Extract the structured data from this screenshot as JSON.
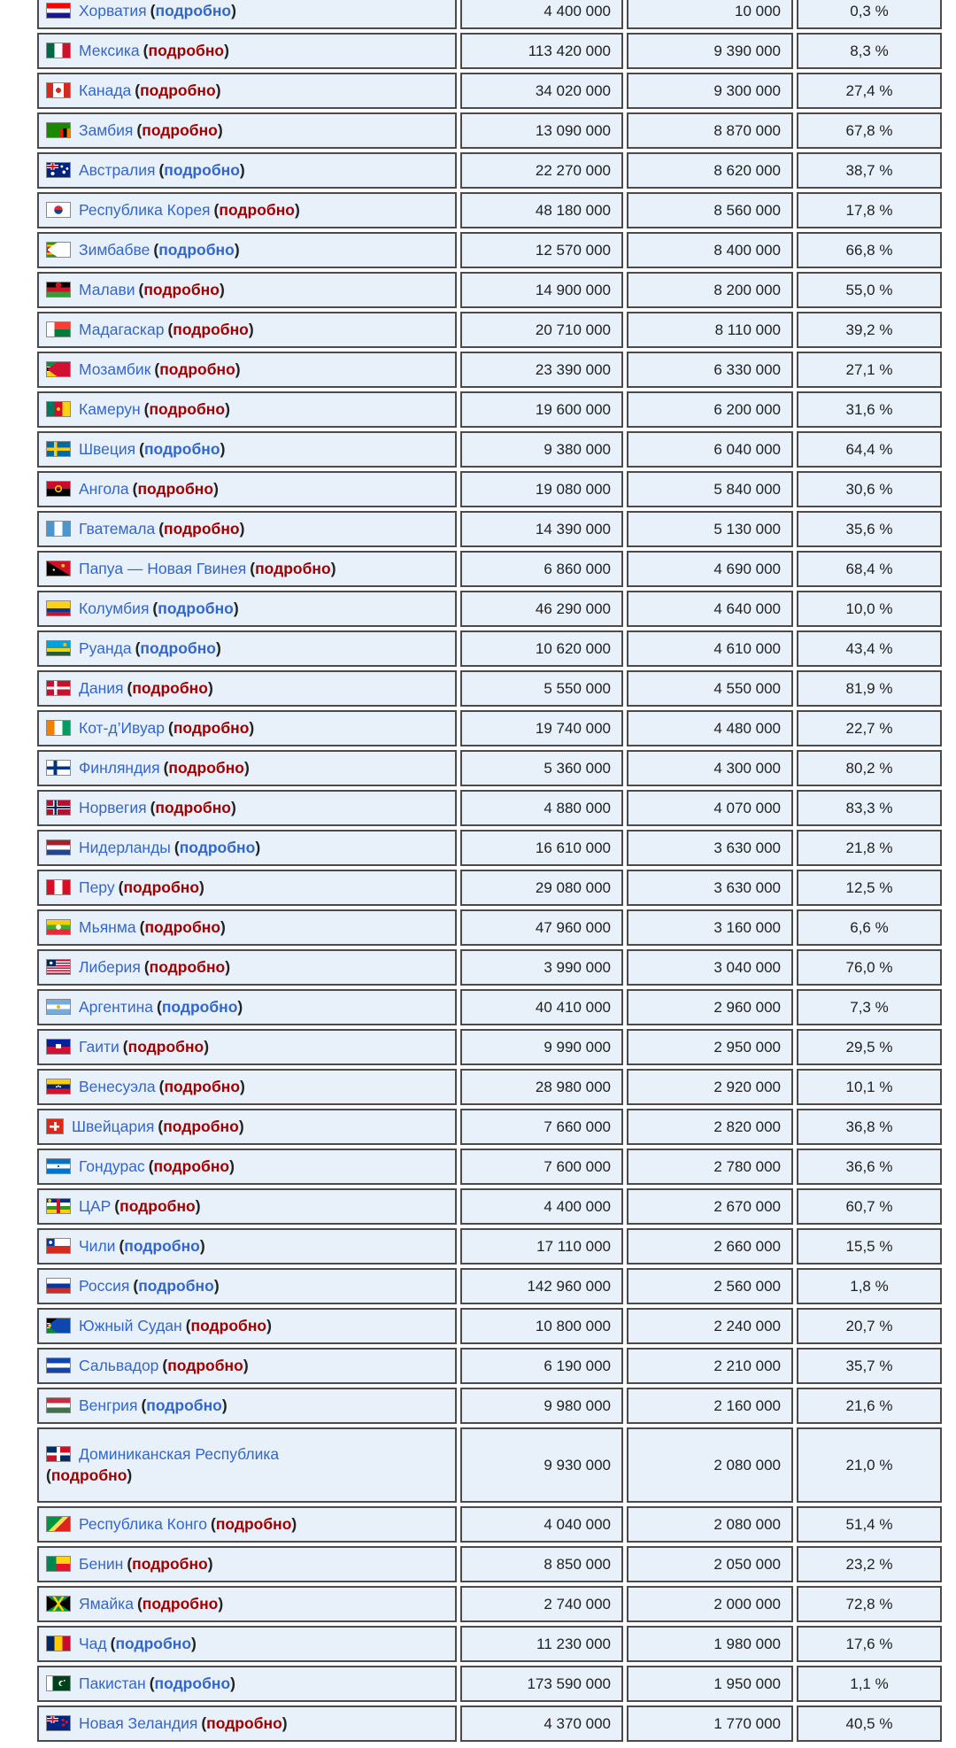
{
  "colors": {
    "page_bg": "#ffffff",
    "text": "#202122",
    "link_blue": "#3366cc",
    "link_red": "#a20000",
    "row_bg": "#e8f1fa",
    "cell_border": "#4b4b4b",
    "flag_border": "#8a8a8a"
  },
  "table": {
    "detail_label": "подробно",
    "rows": [
      {
        "country": "Хорватия",
        "flag": "hr",
        "detail_style": "blue",
        "population": "4 400 000",
        "adherents": "10 000",
        "percent": "0,3 %"
      },
      {
        "country": "Мексика",
        "flag": "mx",
        "detail_style": "red",
        "population": "113 420 000",
        "adherents": "9 390 000",
        "percent": "8,3 %"
      },
      {
        "country": "Канада",
        "flag": "ca",
        "detail_style": "red",
        "population": "34 020 000",
        "adherents": "9 300 000",
        "percent": "27,4 %"
      },
      {
        "country": "Замбия",
        "flag": "zm",
        "detail_style": "red",
        "population": "13 090 000",
        "adherents": "8 870 000",
        "percent": "67,8 %"
      },
      {
        "country": "Австралия",
        "flag": "au",
        "detail_style": "blue",
        "population": "22 270 000",
        "adherents": "8 620 000",
        "percent": "38,7 %"
      },
      {
        "country": "Республика Корея",
        "flag": "kr",
        "detail_style": "red",
        "population": "48 180 000",
        "adherents": "8 560 000",
        "percent": "17,8 %"
      },
      {
        "country": "Зимбабве",
        "flag": "zw",
        "detail_style": "blue",
        "population": "12 570 000",
        "adherents": "8 400 000",
        "percent": "66,8 %"
      },
      {
        "country": "Малави",
        "flag": "mw",
        "detail_style": "red",
        "population": "14 900 000",
        "adherents": "8 200 000",
        "percent": "55,0 %"
      },
      {
        "country": "Мадагаскар",
        "flag": "mg",
        "detail_style": "red",
        "population": "20 710 000",
        "adherents": "8 110 000",
        "percent": "39,2 %"
      },
      {
        "country": "Мозамбик",
        "flag": "mz",
        "detail_style": "red",
        "population": "23 390 000",
        "adherents": "6 330 000",
        "percent": "27,1 %"
      },
      {
        "country": "Камерун",
        "flag": "cm",
        "detail_style": "red",
        "population": "19 600 000",
        "adherents": "6 200 000",
        "percent": "31,6 %"
      },
      {
        "country": "Швеция",
        "flag": "se",
        "detail_style": "blue",
        "population": "9 380 000",
        "adherents": "6 040 000",
        "percent": "64,4 %"
      },
      {
        "country": "Ангола",
        "flag": "ao",
        "detail_style": "red",
        "population": "19 080 000",
        "adherents": "5 840 000",
        "percent": "30,6 %"
      },
      {
        "country": "Гватемала",
        "flag": "gt",
        "detail_style": "red",
        "population": "14 390 000",
        "adherents": "5 130 000",
        "percent": "35,6 %"
      },
      {
        "country": "Папуа — Новая Гвинея",
        "flag": "pg",
        "detail_style": "red",
        "population": "6 860 000",
        "adherents": "4 690 000",
        "percent": "68,4 %"
      },
      {
        "country": "Колумбия",
        "flag": "co",
        "detail_style": "blue",
        "population": "46 290 000",
        "adherents": "4 640 000",
        "percent": "10,0 %"
      },
      {
        "country": "Руанда",
        "flag": "rw",
        "detail_style": "blue",
        "population": "10 620 000",
        "adherents": "4 610 000",
        "percent": "43,4 %"
      },
      {
        "country": "Дания",
        "flag": "dk",
        "detail_style": "red",
        "population": "5 550 000",
        "adherents": "4 550 000",
        "percent": "81,9 %"
      },
      {
        "country": "Кот-д’Ивуар",
        "flag": "ci",
        "detail_style": "red",
        "population": "19 740 000",
        "adherents": "4 480 000",
        "percent": "22,7 %"
      },
      {
        "country": "Финляндия",
        "flag": "fi",
        "detail_style": "red",
        "population": "5 360 000",
        "adherents": "4 300 000",
        "percent": "80,2 %"
      },
      {
        "country": "Норвегия",
        "flag": "no",
        "detail_style": "red",
        "population": "4 880 000",
        "adherents": "4 070 000",
        "percent": "83,3 %"
      },
      {
        "country": "Нидерланды",
        "flag": "nl",
        "detail_style": "blue",
        "population": "16 610 000",
        "adherents": "3 630 000",
        "percent": "21,8 %"
      },
      {
        "country": "Перу",
        "flag": "pe",
        "detail_style": "red",
        "population": "29 080 000",
        "adherents": "3 630 000",
        "percent": "12,5 %"
      },
      {
        "country": "Мьянма",
        "flag": "mm",
        "detail_style": "red",
        "population": "47 960 000",
        "adherents": "3 160 000",
        "percent": "6,6 %"
      },
      {
        "country": "Либерия",
        "flag": "lr",
        "detail_style": "red",
        "population": "3 990 000",
        "adherents": "3 040 000",
        "percent": "76,0 %"
      },
      {
        "country": "Аргентина",
        "flag": "ar",
        "detail_style": "blue",
        "population": "40 410 000",
        "adherents": "2 960 000",
        "percent": "7,3 %"
      },
      {
        "country": "Гаити",
        "flag": "ht",
        "detail_style": "red",
        "population": "9 990 000",
        "adherents": "2 950 000",
        "percent": "29,5 %"
      },
      {
        "country": "Венесуэла",
        "flag": "ve",
        "detail_style": "red",
        "population": "28 980 000",
        "adherents": "2 920 000",
        "percent": "10,1 %"
      },
      {
        "country": "Швейцария",
        "flag": "ch",
        "detail_style": "red",
        "population": "7 660 000",
        "adherents": "2 820 000",
        "percent": "36,8 %"
      },
      {
        "country": "Гондурас",
        "flag": "hn",
        "detail_style": "red",
        "population": "7 600 000",
        "adherents": "2 780 000",
        "percent": "36,6 %"
      },
      {
        "country": "ЦАР",
        "flag": "cf",
        "detail_style": "red",
        "population": "4 400 000",
        "adherents": "2 670 000",
        "percent": "60,7 %"
      },
      {
        "country": "Чили",
        "flag": "cl",
        "detail_style": "blue",
        "population": "17 110 000",
        "adherents": "2 660 000",
        "percent": "15,5 %"
      },
      {
        "country": "Россия",
        "flag": "ru",
        "detail_style": "blue",
        "population": "142 960 000",
        "adherents": "2 560 000",
        "percent": "1,8 %"
      },
      {
        "country": "Южный Судан",
        "flag": "ss",
        "detail_style": "red",
        "population": "10 800 000",
        "adherents": "2 240 000",
        "percent": "20,7 %"
      },
      {
        "country": "Сальвадор",
        "flag": "sv",
        "detail_style": "red",
        "population": "6 190 000",
        "adherents": "2 210 000",
        "percent": "35,7 %"
      },
      {
        "country": "Венгрия",
        "flag": "hu",
        "detail_style": "blue",
        "population": "9 980 000",
        "adherents": "2 160 000",
        "percent": "21,6 %"
      },
      {
        "country": "Доминиканская Республика",
        "flag": "do",
        "detail_style": "red",
        "two_line": true,
        "population": "9 930 000",
        "adherents": "2 080 000",
        "percent": "21,0 %"
      },
      {
        "country": "Республика Конго",
        "flag": "cg",
        "detail_style": "red",
        "population": "4 040 000",
        "adherents": "2 080 000",
        "percent": "51,4 %"
      },
      {
        "country": "Бенин",
        "flag": "bj",
        "detail_style": "red",
        "population": "8 850 000",
        "adherents": "2 050 000",
        "percent": "23,2 %"
      },
      {
        "country": "Ямайка",
        "flag": "jm",
        "detail_style": "red",
        "population": "2 740 000",
        "adherents": "2 000 000",
        "percent": "72,8 %"
      },
      {
        "country": "Чад",
        "flag": "td",
        "detail_style": "blue",
        "population": "11 230 000",
        "adherents": "1 980 000",
        "percent": "17,6 %"
      },
      {
        "country": "Пакистан",
        "flag": "pk",
        "detail_style": "blue",
        "population": "173 590 000",
        "adherents": "1 950 000",
        "percent": "1,1 %"
      },
      {
        "country": "Новая Зеландия",
        "flag": "nz",
        "detail_style": "red",
        "population": "4 370 000",
        "adherents": "1 770 000",
        "percent": "40,5 %"
      }
    ]
  },
  "flags": {
    "hr": {
      "css": "linear-gradient(to bottom, #ff0000 33.3%, #ffffff 33.3% 66.6%, #171796 66.6%)"
    },
    "mx": {
      "css": "linear-gradient(to right, #006847 33.3%, #ffffff 33.3% 66.6%, #ce1126 66.6%)"
    },
    "ca": {
      "css": "radial-gradient(circle 3px at 50% 50%, #d52b1e 95%, rgba(213,43,30,0) 100%), linear-gradient(to right, #d52b1e 27%, #ffffff 27% 73%, #d52b1e 73%)"
    },
    "zm": {
      "css": "linear-gradient(to bottom, #198a00 38%, rgba(0,0,0,0) 38%), linear-gradient(to right, #198a00 58%, #de2010 58% 72%, #000000 72% 86%, #ef7d00 86%)"
    },
    "au": {
      "css": "radial-gradient(circle 2px at 74% 65%, #ffffff 90%, rgba(255,255,255,0) 100%), radial-gradient(circle 1.5px at 88% 40%, #ffffff 90%, rgba(255,255,255,0) 100%), radial-gradient(circle 1.5px at 65% 25%, #ffffff 90%, rgba(255,255,255,0) 100%), radial-gradient(circle 2.2px at 25% 75%, #ffffff 90%, rgba(255,255,255,0) 100%), linear-gradient(to bottom, rgba(0,0,0,0) 38%, #cf142b 38% 62%, rgba(0,0,0,0) 62%) 0 0 / 50% 50% no-repeat, linear-gradient(to right, rgba(0,0,0,0) 41%, #cf142b 41% 59%, rgba(0,0,0,0) 59%) 0 0 / 50% 50% no-repeat, linear-gradient(to bottom, rgba(0,0,0,0) 28%, #ffffff 28% 72%, rgba(0,0,0,0) 72%) 0 0 / 50% 50% no-repeat, linear-gradient(to right, rgba(0,0,0,0) 33%, #ffffff 33% 67%, rgba(0,0,0,0) 67%) 0 0 / 50% 50% no-repeat, linear-gradient(#00247d, #00247d)"
    },
    "kr": {
      "css": "radial-gradient(circle at 50% 50%, rgba(0,0,0,0) 0 4.5px, #ffffff 5px), linear-gradient(to bottom, #cd2e3a 50%, #0047a0 50%)"
    },
    "zw": {
      "css": "conic-gradient(from 55deg at 0% 50%, #ffffff 0 70deg, rgba(0,0,0,0) 70deg), linear-gradient(to bottom, #319209 0 14.3%, #ffd200 14.3% 28.6%, #de2010 28.6% 42.9%, #000000 42.9% 57.2%, #de2010 57.2% 71.5%, #ffd200 71.5% 85.8%, #319209 85.8%)"
    },
    "mw": {
      "css": "radial-gradient(circle 3.5px at 50% 18%, #ce1126 90%, rgba(0,0,0,0) 100%), linear-gradient(to bottom, #000000 33.3%, #ce1126 33.3% 66.6%, #339e35 66.6%)"
    },
    "mg": {
      "css": "linear-gradient(to right, #ffffff 33.3%, rgba(0,0,0,0) 33.3%), linear-gradient(to bottom, #fc3d32 50%, #007e3a 50%)"
    },
    "mz": {
      "css": "conic-gradient(from 55deg at 0% 50%, #d21034 0 70deg, rgba(0,0,0,0) 70deg), linear-gradient(to bottom, #009739 31%, #ffffff 31% 36%, #000000 36% 64%, #ffffff 64% 69%, #ffd100 69%)"
    },
    "cm": {
      "css": "radial-gradient(circle 2px at 50% 50%, #fcd116 90%, rgba(0,0,0,0) 100%), linear-gradient(to right, #007a5e 33.3%, #ce1126 33.3% 66.6%, #fcd116 66.6%)"
    },
    "se": {
      "css": "linear-gradient(to bottom, rgba(0,0,0,0) 40%, #fecc00 40% 62%, rgba(0,0,0,0) 62%), linear-gradient(to right, rgba(0,0,0,0) 30%, #fecc00 30% 44%, rgba(0,0,0,0) 44%), linear-gradient(#006aa7, #006aa7)"
    },
    "ao": {
      "css": "radial-gradient(circle at 50% 50%, rgba(0,0,0,0) 2.2px, #ffcb00 2.7px 3.8px, rgba(0,0,0,0) 4.2px), linear-gradient(to bottom, #cc092f 50%, #000000 50%)"
    },
    "gt": {
      "css": "linear-gradient(to right, #4997d0 33.3%, #ffffff 33.3% 66.6%, #4997d0 66.6%)"
    },
    "pg": {
      "css": "radial-gradient(circle 1.2px at 30% 60%, #ffffff 90%, rgba(255,255,255,0) 100%), radial-gradient(circle 2px at 70% 30%, #fcd116 90%, rgba(0,0,0,0) 100%), linear-gradient(to bottom left, #ce1126 49.7%, #000000 50.3%)"
    },
    "co": {
      "css": "linear-gradient(to bottom, #fcd116 50%, #003893 50% 75%, #ce1126 75%)"
    },
    "rw": {
      "css": "radial-gradient(circle 2.2px at 78% 25%, #e5be01 90%, rgba(0,0,0,0) 100%), linear-gradient(to bottom, #00a1de 50%, #fad201 50% 75%, #20603d 75%)"
    },
    "dk": {
      "css": "linear-gradient(to bottom, rgba(0,0,0,0) 40%, #ffffff 40% 60%, rgba(0,0,0,0) 60%), linear-gradient(to right, rgba(0,0,0,0) 30%, #ffffff 30% 44%, rgba(0,0,0,0) 44%), linear-gradient(#c8102e, #c8102e)"
    },
    "ci": {
      "css": "linear-gradient(to right, #f77f00 33.3%, #ffffff 33.3% 66.6%, #009e60 66.6%)"
    },
    "fi": {
      "css": "linear-gradient(to bottom, rgba(0,0,0,0) 40%, #003580 40% 62%, rgba(0,0,0,0) 62%), linear-gradient(to right, rgba(0,0,0,0) 28%, #003580 28% 44%, rgba(0,0,0,0) 44%), linear-gradient(#ffffff, #ffffff)"
    },
    "no": {
      "css": "linear-gradient(to bottom, rgba(0,0,0,0) 43%, #002868 43% 57%, rgba(0,0,0,0) 57%), linear-gradient(to right, rgba(0,0,0,0) 32%, #002868 32% 42%, rgba(0,0,0,0) 42%), linear-gradient(to bottom, rgba(0,0,0,0) 36%, #ffffff 36% 64%, rgba(0,0,0,0) 64%), linear-gradient(to right, rgba(0,0,0,0) 27%, #ffffff 27% 47%, rgba(0,0,0,0) 47%), linear-gradient(#ba0c2f, #ba0c2f)"
    },
    "nl": {
      "css": "linear-gradient(to bottom, #ae1c28 33.3%, #ffffff 33.3% 66.6%, #21468b 66.6%)"
    },
    "pe": {
      "css": "linear-gradient(to right, #d91023 33.3%, #ffffff 33.3% 66.6%, #d91023 66.6%)"
    },
    "mm": {
      "css": "radial-gradient(circle 3px at 50% 50%, #ffffff 90%, rgba(255,255,255,0) 100%), linear-gradient(to bottom, #fecb00 33.3%, #34b233 33.3% 66.6%, #ea2839 66.6%)"
    },
    "lr": {
      "css": "radial-gradient(circle 1.8px at 18% 22%, #ffffff 90%, rgba(255,255,255,0) 100%), linear-gradient(#002868, #002868) 0 0 / 40% 45% no-repeat, repeating-linear-gradient(to bottom, #bf0a30 0 9.1%, #ffffff 9.1% 18.2%)"
    },
    "ar": {
      "css": "radial-gradient(circle 2.2px at 50% 50%, #f6b40e 90%, rgba(0,0,0,0) 100%), linear-gradient(to bottom, #74acdf 33.3%, #ffffff 33.3% 66.6%, #74acdf 66.6%)"
    },
    "ht": {
      "css": "linear-gradient(#ffffff, #ffffff) 50% 50% / 24% 32% no-repeat, linear-gradient(to bottom, #00209f 50%, #d21034 50%)"
    },
    "ve": {
      "css": "radial-gradient(circle 1px at 42% 52%, #ffffff 90%, rgba(255,255,255,0) 100%), radial-gradient(circle 1px at 50% 47%, #ffffff 90%, rgba(255,255,255,0) 100%), radial-gradient(circle 1px at 58% 52%, #ffffff 90%, rgba(255,255,255,0) 100%), linear-gradient(to bottom, #ffcc00 33.3%, #00247d 33.3% 66.6%, #cf142b 66.6%)"
    },
    "ch": {
      "css": "linear-gradient(#ffffff, #ffffff) 50% 50% / 16% 62% no-repeat, linear-gradient(#ffffff, #ffffff) 50% 50% / 62% 16% no-repeat, linear-gradient(#da291c, #da291c)",
      "w": 20
    },
    "hn": {
      "css": "radial-gradient(circle 1.2px at 50% 50%, #0073cf 90%, rgba(0,0,0,0) 100%), linear-gradient(to bottom, #0073cf 33.3%, #ffffff 33.3% 66.6%, #0073cf 66.6%)"
    },
    "cf": {
      "css": "radial-gradient(circle 2px at 12% 12%, #ffce00 90%, rgba(0,0,0,0) 100%), linear-gradient(to right, rgba(0,0,0,0) 42%, #d21034 42% 58%, rgba(0,0,0,0) 58%), linear-gradient(to bottom, #003082 25%, #ffffff 25% 50%, #289728 50% 75%, #ffce00 75%)"
    },
    "cl": {
      "css": "radial-gradient(circle 2px at 16% 25%, #ffffff 90%, rgba(255,255,255,0) 100%), linear-gradient(#0039a6, #0039a6) 0 0 / 33.3% 50% no-repeat, linear-gradient(to bottom, #ffffff 50%, #d52b1e 50%)"
    },
    "ru": {
      "css": "linear-gradient(to bottom, #ffffff 33.3%, #0039a6 33.3% 66.6%, #d52b1e 66.6%)"
    },
    "ss": {
      "css": "radial-gradient(circle 1.8px at 12% 50%, #fcdd09 90%, rgba(0,0,0,0) 100%), conic-gradient(from 55deg at 0% 50%, #0f47af 0 70deg, rgba(0,0,0,0) 70deg), linear-gradient(to bottom, #000000 30%, #ffffff 30% 37%, #da121a 37% 63%, #ffffff 63% 70%, #078930 70%)"
    },
    "sv": {
      "css": "linear-gradient(to bottom, #0f47af 33.3%, #ffffff 33.3% 66.6%, #0f47af 66.6%)"
    },
    "hu": {
      "css": "linear-gradient(to bottom, #cd2a3e 33.3%, #ffffff 33.3% 66.6%, #436f4d 66.6%)"
    },
    "do": {
      "css": "linear-gradient(to bottom, rgba(0,0,0,0) 41%, #ffffff 41% 59%, rgba(0,0,0,0) 59%), linear-gradient(to right, rgba(0,0,0,0) 42%, #ffffff 42% 58%, rgba(0,0,0,0) 58%), conic-gradient(from 0deg at 50% 50%, #ce1126 0 90deg, #002d62 90deg 180deg, #ce1126 180deg 270deg, #002d62 270deg)"
    },
    "cg": {
      "css": "linear-gradient(135deg, #009543 42%, #fbde4a 42% 58%, #dc241f 58%)"
    },
    "bj": {
      "css": "linear-gradient(to right, #008751 40%, rgba(0,0,0,0) 40%), linear-gradient(to bottom, #fcd116 50%, #e8112d 50%)"
    },
    "jm": {
      "css": "linear-gradient(57deg, rgba(0,0,0,0) 46%, #fed100 46% 54%, rgba(0,0,0,0) 54%), linear-gradient(-57deg, rgba(0,0,0,0) 46%, #fed100 46% 54%, rgba(0,0,0,0) 54%), conic-gradient(from 57deg at 50% 50%, #000000 0 66deg, #009b3a 66deg 180deg, #000000 180deg 246deg, #009b3a 246deg)"
    },
    "td": {
      "css": "linear-gradient(to right, #002664 33.3%, #fecb00 33.3% 66.6%, #c60c30 66.6%)"
    },
    "pk": {
      "css": "radial-gradient(circle 1px at 76% 30%, #ffffff 90%, rgba(255,255,255,0) 100%), radial-gradient(circle 2.6px at 68% 52%, #01411c 88%, rgba(0,0,0,0) 100%), radial-gradient(circle 3.2px at 63% 50%, #ffffff 88%, rgba(255,255,255,0) 100%), linear-gradient(to right, #ffffff 25%, #01411c 25%)"
    },
    "nz": {
      "css": "radial-gradient(circle 1.8px at 72% 62%, #cc142b 90%, rgba(0,0,0,0) 100%), radial-gradient(circle 1.8px at 86% 42%, #cc142b 90%, rgba(0,0,0,0) 100%), radial-gradient(circle 1.8px at 70% 28%, #cc142b 90%, rgba(0,0,0,0) 100%), linear-gradient(to bottom, rgba(0,0,0,0) 38%, #cf142b 38% 62%, rgba(0,0,0,0) 62%) 0 0 / 50% 50% no-repeat, linear-gradient(to right, rgba(0,0,0,0) 41%, #cf142b 41% 59%, rgba(0,0,0,0) 59%) 0 0 / 50% 50% no-repeat, linear-gradient(to bottom, rgba(0,0,0,0) 28%, #ffffff 28% 72%, rgba(0,0,0,0) 72%) 0 0 / 50% 50% no-repeat, linear-gradient(to right, rgba(0,0,0,0) 33%, #ffffff 33% 67%, rgba(0,0,0,0) 67%) 0 0 / 50% 50% no-repeat, linear-gradient(#00247d, #00247d)"
    }
  }
}
